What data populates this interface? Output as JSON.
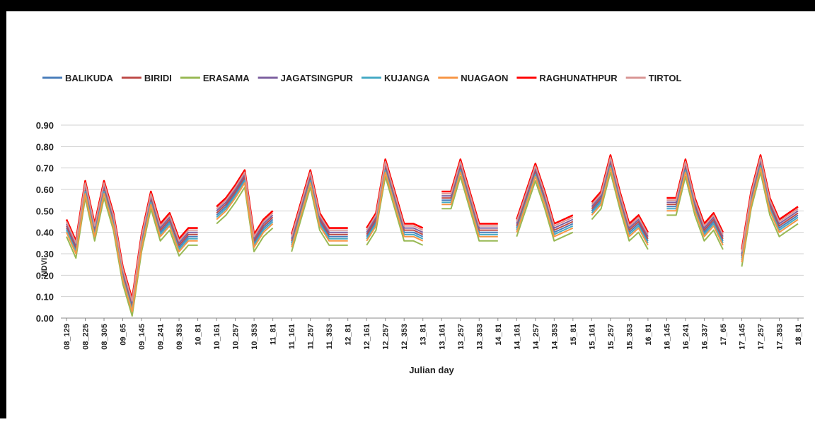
{
  "chart_data": {
    "type": "line",
    "x_label": "Julian day",
    "y_label": "NDVI",
    "ylim": [
      0,
      0.9
    ],
    "yticks": [
      {
        "value": 0,
        "label": "0.00"
      },
      {
        "value": 0.1,
        "label": "0.10"
      },
      {
        "value": 0.2,
        "label": "0.20"
      },
      {
        "value": 0.3,
        "label": "0.30"
      },
      {
        "value": 0.4,
        "label": "0.40"
      },
      {
        "value": 0.5,
        "label": "0.50"
      },
      {
        "value": 0.6,
        "label": "0.60"
      },
      {
        "value": 0.7,
        "label": "0.70"
      },
      {
        "value": 0.8,
        "label": "0.80"
      },
      {
        "value": 0.9,
        "label": "0.90"
      }
    ],
    "grid": true,
    "legend": "top",
    "categories": [
      "08_129",
      null,
      "08_225",
      null,
      "08_305",
      null,
      "09_65",
      null,
      "09_145",
      null,
      "09_241",
      null,
      "09_353",
      null,
      "10_81",
      null,
      "10_161",
      null,
      "10_257",
      null,
      "10_353",
      null,
      "11_81",
      null,
      "11_161",
      null,
      "11_257",
      null,
      "11_353",
      null,
      "12_81",
      null,
      "12_161",
      null,
      "12_257",
      null,
      "12_353",
      null,
      "13_81",
      null,
      "13_161",
      null,
      "13_257",
      null,
      "13_353",
      null,
      "14_81",
      null,
      "14_161",
      null,
      "14_257",
      null,
      "14_353",
      null,
      "15_81",
      null,
      "15_161",
      null,
      "15_257",
      null,
      "15_353",
      null,
      "16_81",
      null,
      "16_145",
      null,
      "16_241",
      null,
      "16_337",
      null,
      "17_65",
      null,
      "17_145",
      null,
      "17_257",
      null,
      "17_353",
      null,
      "18_81"
    ],
    "series": [
      {
        "name": "BALIKUDA",
        "color": "#4a7ebb",
        "values": [
          0.42,
          0.32,
          0.6,
          0.4,
          0.6,
          0.45,
          0.2,
          0.05,
          0.35,
          0.55,
          0.4,
          0.45,
          0.33,
          0.38,
          0.38,
          null,
          0.48,
          0.52,
          0.58,
          0.65,
          0.35,
          0.42,
          0.46,
          null,
          0.35,
          0.5,
          0.65,
          0.45,
          0.38,
          0.38,
          0.38,
          null,
          0.38,
          0.45,
          0.7,
          0.55,
          0.4,
          0.4,
          0.38,
          null,
          0.55,
          0.55,
          0.7,
          0.55,
          0.4,
          0.4,
          0.4,
          null,
          0.42,
          0.55,
          0.68,
          0.55,
          0.4,
          0.42,
          0.44,
          null,
          0.5,
          0.55,
          0.72,
          0.55,
          0.4,
          0.44,
          0.36,
          null,
          0.52,
          0.52,
          0.7,
          0.52,
          0.4,
          0.45,
          0.36,
          null,
          0.28,
          0.55,
          0.72,
          0.52,
          0.42,
          0.45,
          0.48
        ]
      },
      {
        "name": "BIRIDI",
        "color": "#be4b48",
        "values": [
          0.43,
          0.33,
          0.61,
          0.41,
          0.61,
          0.46,
          0.21,
          0.06,
          0.36,
          0.56,
          0.41,
          0.46,
          0.34,
          0.39,
          0.39,
          null,
          0.49,
          0.53,
          0.59,
          0.66,
          0.36,
          0.43,
          0.47,
          null,
          0.36,
          0.51,
          0.66,
          0.46,
          0.39,
          0.39,
          0.39,
          null,
          0.39,
          0.46,
          0.71,
          0.56,
          0.41,
          0.41,
          0.39,
          null,
          0.56,
          0.56,
          0.71,
          0.56,
          0.41,
          0.41,
          0.41,
          null,
          0.43,
          0.56,
          0.69,
          0.56,
          0.41,
          0.43,
          0.45,
          null,
          0.51,
          0.56,
          0.73,
          0.56,
          0.41,
          0.45,
          0.37,
          null,
          0.53,
          0.53,
          0.71,
          0.53,
          0.41,
          0.46,
          0.37,
          null,
          0.29,
          0.56,
          0.73,
          0.53,
          0.43,
          0.46,
          0.49
        ]
      },
      {
        "name": "ERASAMA",
        "color": "#98b954",
        "values": [
          0.38,
          0.28,
          0.56,
          0.36,
          0.56,
          0.41,
          0.16,
          0.01,
          0.31,
          0.51,
          0.36,
          0.41,
          0.29,
          0.34,
          0.34,
          null,
          0.44,
          0.48,
          0.54,
          0.61,
          0.31,
          0.38,
          0.42,
          null,
          0.31,
          0.46,
          0.61,
          0.41,
          0.34,
          0.34,
          0.34,
          null,
          0.34,
          0.41,
          0.66,
          0.51,
          0.36,
          0.36,
          0.34,
          null,
          0.51,
          0.51,
          0.66,
          0.51,
          0.36,
          0.36,
          0.36,
          null,
          0.38,
          0.51,
          0.64,
          0.51,
          0.36,
          0.38,
          0.4,
          null,
          0.46,
          0.51,
          0.68,
          0.51,
          0.36,
          0.4,
          0.32,
          null,
          0.48,
          0.48,
          0.66,
          0.48,
          0.36,
          0.41,
          0.32,
          null,
          0.24,
          0.51,
          0.68,
          0.48,
          0.38,
          0.41,
          0.44
        ]
      },
      {
        "name": "JAGATSINGPUR",
        "color": "#7d60a0",
        "values": [
          0.44,
          0.34,
          0.62,
          0.42,
          0.62,
          0.47,
          0.22,
          0.07,
          0.37,
          0.57,
          0.42,
          0.47,
          0.35,
          0.4,
          0.4,
          null,
          0.5,
          0.54,
          0.6,
          0.67,
          0.37,
          0.44,
          0.48,
          null,
          0.37,
          0.52,
          0.67,
          0.47,
          0.4,
          0.4,
          0.4,
          null,
          0.4,
          0.47,
          0.72,
          0.57,
          0.42,
          0.42,
          0.4,
          null,
          0.57,
          0.57,
          0.72,
          0.57,
          0.42,
          0.42,
          0.42,
          null,
          0.44,
          0.57,
          0.7,
          0.57,
          0.42,
          0.44,
          0.46,
          null,
          0.52,
          0.57,
          0.74,
          0.57,
          0.42,
          0.46,
          0.38,
          null,
          0.54,
          0.54,
          0.72,
          0.54,
          0.42,
          0.47,
          0.38,
          null,
          0.3,
          0.57,
          0.74,
          0.54,
          0.44,
          0.47,
          0.5
        ]
      },
      {
        "name": "KUJANGA",
        "color": "#46aac5",
        "values": [
          0.41,
          0.31,
          0.59,
          0.39,
          0.59,
          0.44,
          0.19,
          0.04,
          0.34,
          0.54,
          0.39,
          0.44,
          0.32,
          0.37,
          0.37,
          null,
          0.47,
          0.51,
          0.57,
          0.64,
          0.34,
          0.41,
          0.45,
          null,
          0.34,
          0.49,
          0.64,
          0.44,
          0.37,
          0.37,
          0.37,
          null,
          0.37,
          0.44,
          0.69,
          0.54,
          0.39,
          0.39,
          0.37,
          null,
          0.54,
          0.54,
          0.69,
          0.54,
          0.39,
          0.39,
          0.39,
          null,
          0.41,
          0.54,
          0.67,
          0.54,
          0.39,
          0.41,
          0.43,
          null,
          0.49,
          0.54,
          0.71,
          0.54,
          0.39,
          0.43,
          0.35,
          null,
          0.51,
          0.51,
          0.69,
          0.51,
          0.39,
          0.44,
          0.35,
          null,
          0.27,
          0.54,
          0.71,
          0.51,
          0.41,
          0.44,
          0.47
        ]
      },
      {
        "name": "NUAGAON",
        "color": "#f79646",
        "values": [
          0.4,
          0.3,
          0.58,
          0.38,
          0.58,
          0.43,
          0.18,
          0.03,
          0.33,
          0.53,
          0.38,
          0.43,
          0.31,
          0.36,
          0.36,
          null,
          0.46,
          0.5,
          0.56,
          0.63,
          0.33,
          0.4,
          0.44,
          null,
          0.33,
          0.48,
          0.63,
          0.43,
          0.36,
          0.36,
          0.36,
          null,
          0.36,
          0.43,
          0.68,
          0.53,
          0.38,
          0.38,
          0.36,
          null,
          0.53,
          0.53,
          0.68,
          0.53,
          0.38,
          0.38,
          0.38,
          null,
          0.4,
          0.53,
          0.66,
          0.53,
          0.38,
          0.4,
          0.42,
          null,
          0.48,
          0.53,
          0.7,
          0.53,
          0.38,
          0.42,
          0.34,
          null,
          0.5,
          0.5,
          0.68,
          0.5,
          0.38,
          0.43,
          0.34,
          null,
          0.26,
          0.53,
          0.7,
          0.5,
          0.4,
          0.43,
          0.46
        ]
      },
      {
        "name": "RAGHUNATHPUR",
        "color": "#ff0000",
        "values": [
          0.46,
          0.36,
          0.64,
          0.44,
          0.64,
          0.49,
          0.24,
          0.09,
          0.39,
          0.59,
          0.44,
          0.49,
          0.37,
          0.42,
          0.42,
          null,
          0.52,
          0.56,
          0.62,
          0.69,
          0.39,
          0.46,
          0.5,
          null,
          0.39,
          0.54,
          0.69,
          0.49,
          0.42,
          0.42,
          0.42,
          null,
          0.42,
          0.49,
          0.74,
          0.59,
          0.44,
          0.44,
          0.42,
          null,
          0.59,
          0.59,
          0.74,
          0.59,
          0.44,
          0.44,
          0.44,
          null,
          0.46,
          0.59,
          0.72,
          0.59,
          0.44,
          0.46,
          0.48,
          null,
          0.54,
          0.59,
          0.76,
          0.59,
          0.44,
          0.48,
          0.4,
          null,
          0.56,
          0.56,
          0.74,
          0.56,
          0.44,
          0.49,
          0.4,
          null,
          0.32,
          0.59,
          0.76,
          0.56,
          0.46,
          0.49,
          0.52
        ]
      },
      {
        "name": "TIRTOL",
        "color": "#d99694",
        "values": [
          0.45,
          0.35,
          0.63,
          0.43,
          0.63,
          0.48,
          0.23,
          0.08,
          0.38,
          0.58,
          0.43,
          0.48,
          0.36,
          0.41,
          0.41,
          null,
          0.51,
          0.55,
          0.61,
          0.68,
          0.38,
          0.45,
          0.49,
          null,
          0.38,
          0.53,
          0.68,
          0.48,
          0.41,
          0.41,
          0.41,
          null,
          0.41,
          0.48,
          0.73,
          0.58,
          0.43,
          0.43,
          0.41,
          null,
          0.58,
          0.58,
          0.73,
          0.58,
          0.43,
          0.43,
          0.43,
          null,
          0.45,
          0.58,
          0.71,
          0.58,
          0.43,
          0.45,
          0.47,
          null,
          0.53,
          0.58,
          0.75,
          0.58,
          0.43,
          0.47,
          0.39,
          null,
          0.55,
          0.55,
          0.73,
          0.55,
          0.43,
          0.48,
          0.39,
          null,
          0.31,
          0.58,
          0.75,
          0.55,
          0.45,
          0.48,
          0.51
        ]
      }
    ]
  }
}
